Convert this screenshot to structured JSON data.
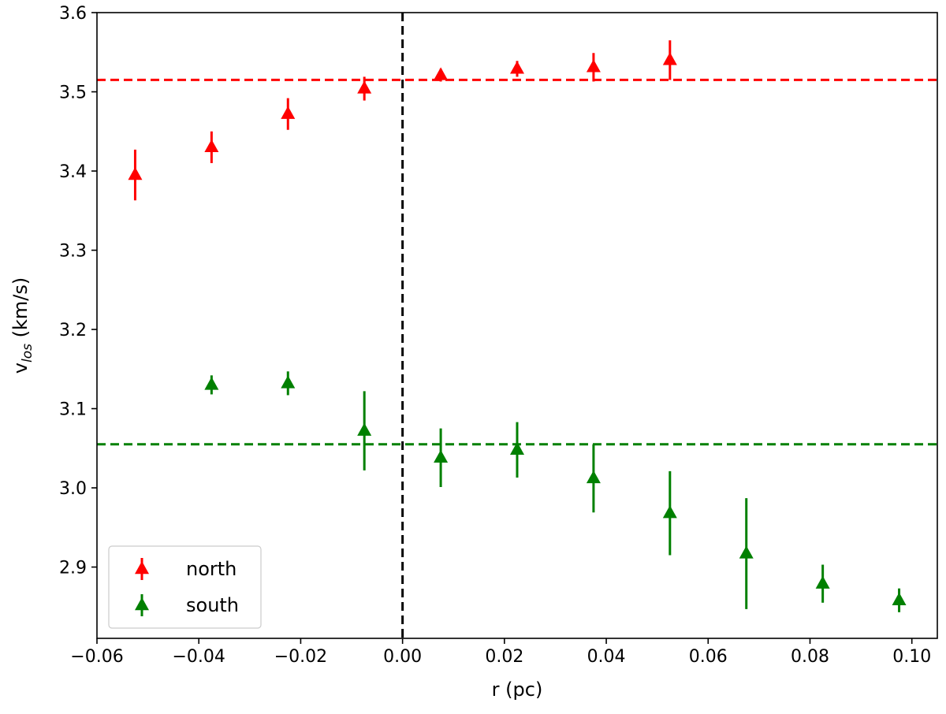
{
  "chart_data": {
    "type": "scatter",
    "title": "",
    "xlabel": "r (pc)",
    "ylabel": {
      "base": "v",
      "subscript": "los",
      "unit": " (km/s)"
    },
    "xlim": [
      -0.06,
      0.105
    ],
    "ylim": [
      2.81,
      3.6
    ],
    "xticks": [
      -0.06,
      -0.04,
      -0.02,
      0.0,
      0.02,
      0.04,
      0.06,
      0.08,
      0.1
    ],
    "xtick_labels": [
      "−0.06",
      "−0.04",
      "−0.02",
      "0.00",
      "0.02",
      "0.04",
      "0.06",
      "0.08",
      "0.10"
    ],
    "yticks": [
      2.9,
      3.0,
      3.1,
      3.2,
      3.3,
      3.4,
      3.5,
      3.6
    ],
    "ytick_labels": [
      "2.9",
      "3.0",
      "3.1",
      "3.2",
      "3.3",
      "3.4",
      "3.5",
      "3.6"
    ],
    "grid": false,
    "legend_position": "bottom-left",
    "series": [
      {
        "name": "north",
        "color": "#ff0000",
        "marker": "triangle-up",
        "x": [
          -0.0525,
          -0.0375,
          -0.0225,
          -0.0075,
          0.0075,
          0.0225,
          0.0375,
          0.0525
        ],
        "y": [
          3.395,
          3.43,
          3.472,
          3.504,
          3.521,
          3.529,
          3.531,
          3.54
        ],
        "yerr": [
          0.032,
          0.02,
          0.02,
          0.015,
          0.008,
          0.01,
          0.018,
          0.025
        ]
      },
      {
        "name": "south",
        "color": "#008000",
        "marker": "triangle-up",
        "x": [
          -0.0375,
          -0.0225,
          -0.0075,
          0.0075,
          0.0225,
          0.0375,
          0.0525,
          0.0675,
          0.0825,
          0.0975
        ],
        "y": [
          3.13,
          3.132,
          3.072,
          3.038,
          3.048,
          3.012,
          2.968,
          2.917,
          2.879,
          2.858
        ],
        "yerr": [
          0.012,
          0.015,
          0.05,
          0.037,
          0.035,
          0.043,
          0.053,
          0.07,
          0.024,
          0.015
        ]
      }
    ],
    "reference_lines": [
      {
        "orientation": "horizontal",
        "value": 3.515,
        "color": "#ff0000",
        "style": "dashed"
      },
      {
        "orientation": "horizontal",
        "value": 3.055,
        "color": "#008000",
        "style": "dashed"
      },
      {
        "orientation": "vertical",
        "value": 0.0,
        "color": "#000000",
        "style": "dashed"
      }
    ]
  }
}
